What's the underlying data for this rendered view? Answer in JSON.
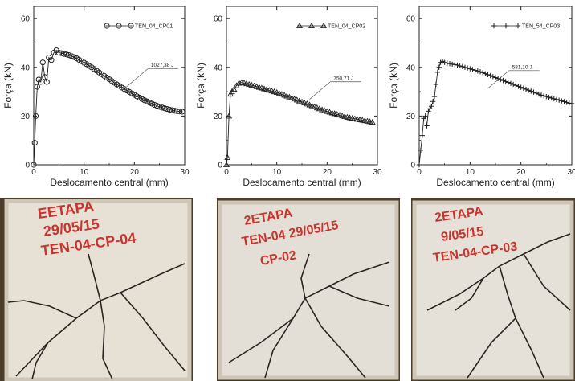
{
  "chart_data": [
    {
      "type": "scatter",
      "xlabel": "Deslocamento central (mm)",
      "ylabel": "Força (kN)",
      "xlim": [
        0,
        30
      ],
      "ylim": [
        0,
        65
      ],
      "xticks": [
        "0",
        "10",
        "20",
        "30"
      ],
      "yticks": [
        "0",
        "20",
        "40",
        "60"
      ],
      "marker": "circle",
      "legend_position": "top-right",
      "series": [
        {
          "name": "TEN_04_CP01",
          "x": [
            0,
            0.2,
            0.4,
            0.7,
            1.0,
            1.4,
            1.8,
            2.2,
            2.6,
            3.0,
            3.5,
            4.0,
            4.5,
            5.0,
            5.5,
            6.0,
            6.5,
            7.0,
            7.5,
            8.0,
            8.5,
            9.0,
            9.5,
            10.0,
            10.5,
            11.0,
            11.5,
            12.0,
            12.5,
            13.0,
            13.5,
            14.0,
            14.5,
            15.0,
            15.5,
            16.0,
            16.5,
            17.0,
            17.5,
            18.0,
            18.5,
            19.0,
            19.5,
            20.0,
            20.5,
            21.0,
            21.5,
            22.0,
            22.5,
            23.0,
            23.5,
            24.0,
            24.5,
            25.0,
            25.5,
            26.0,
            26.5,
            27.0,
            27.5,
            28.0,
            28.5,
            29.0,
            29.5
          ],
          "y": [
            0,
            9,
            20,
            32,
            35,
            34,
            42,
            36,
            34,
            44,
            43,
            46,
            47,
            46,
            45.8,
            45.5,
            45.3,
            45,
            44.6,
            44.2,
            43.7,
            43.1,
            42.5,
            41.9,
            41.3,
            40.6,
            40,
            39.3,
            38.6,
            37.9,
            37.2,
            36.5,
            35.8,
            35.1,
            34.4,
            33.7,
            33,
            32.4,
            31.7,
            31.1,
            30.5,
            29.9,
            29.3,
            28.7,
            28.1,
            27.6,
            27,
            26.5,
            26,
            25.5,
            25.1,
            24.6,
            24.2,
            23.8,
            23.5,
            23.2,
            22.9,
            22.6,
            22.4,
            22.2,
            22,
            21.9,
            21.8
          ]
        }
      ],
      "annotation": {
        "text": "1027,38 J",
        "x": 22,
        "y": 38.7
      }
    },
    {
      "type": "scatter",
      "xlabel": "Deslocamento central (mm)",
      "ylabel": "Força (kN)",
      "xlim": [
        0,
        30
      ],
      "ylim": [
        0,
        65
      ],
      "xticks": [
        "0",
        "10",
        "20",
        "30"
      ],
      "yticks": [
        "0",
        "20",
        "40",
        "60"
      ],
      "marker": "triangle",
      "legend_position": "top-right",
      "series": [
        {
          "name": "TEN_04_CP02",
          "x": [
            0,
            0.2,
            0.5,
            0.8,
            1.1,
            1.5,
            2.0,
            2.5,
            3.0,
            3.5,
            4.0,
            4.5,
            5.0,
            5.5,
            6.0,
            6.5,
            7.0,
            7.5,
            8.0,
            8.5,
            9.0,
            9.5,
            10.0,
            10.5,
            11.0,
            11.5,
            12.0,
            12.5,
            13.0,
            13.5,
            14.0,
            14.5,
            15.0,
            15.5,
            16.0,
            16.5,
            17.0,
            17.5,
            18.0,
            18.5,
            19.0,
            19.5,
            20.0,
            20.5,
            21.0,
            21.5,
            22.0,
            22.5,
            23.0,
            23.5,
            24.0,
            24.5,
            25.0,
            25.5,
            26.0,
            26.5,
            27.0,
            27.5,
            28.0,
            28.5,
            29.0
          ],
          "y": [
            0,
            3,
            20,
            29,
            30,
            31,
            32.5,
            33.5,
            33.8,
            33.6,
            33.3,
            33,
            32.7,
            32.4,
            32.1,
            31.8,
            31.5,
            31.2,
            30.9,
            30.6,
            30.3,
            30,
            29.7,
            29.3,
            29,
            28.6,
            28.2,
            27.8,
            27.4,
            27,
            26.6,
            26.2,
            25.8,
            25.4,
            25,
            24.6,
            24.2,
            23.8,
            23.4,
            23,
            22.6,
            22.2,
            21.9,
            21.6,
            21.3,
            21,
            20.7,
            20.4,
            20.1,
            19.8,
            19.5,
            19.3,
            19.1,
            18.9,
            18.7,
            18.5,
            18.3,
            18.1,
            17.9,
            17.7,
            17.5
          ]
        }
      ],
      "annotation": {
        "text": "750,71 J",
        "x": 20,
        "y": 33.4
      }
    },
    {
      "type": "scatter",
      "xlabel": "Deslocamento central (mm)",
      "ylabel": "Força (kN)",
      "xlim": [
        0,
        30
      ],
      "ylim": [
        0,
        65
      ],
      "xticks": [
        "0",
        "10",
        "20",
        "30"
      ],
      "yticks": [
        "0",
        "20",
        "40",
        "60"
      ],
      "marker": "plus",
      "legend_position": "top-right",
      "series": [
        {
          "name": "TEN_54_CP03",
          "x": [
            0,
            0.3,
            0.6,
            0.9,
            1.2,
            1.5,
            1.8,
            2.1,
            2.4,
            2.7,
            3.0,
            3.3,
            3.6,
            3.9,
            4.2,
            4.6,
            5.0,
            5.5,
            6.0,
            6.5,
            7.0,
            7.5,
            8.0,
            8.5,
            9.0,
            9.5,
            10.0,
            10.5,
            11.0,
            11.5,
            12.0,
            12.5,
            13.0,
            13.5,
            14.0,
            14.5,
            15.0,
            15.5,
            16.0,
            16.5,
            17.0,
            17.5,
            18.0,
            18.5,
            19.0,
            19.5,
            20.0,
            20.5,
            21.0,
            21.5,
            22.0,
            22.5,
            23.0,
            23.5,
            24.0,
            24.5,
            25.0,
            25.5,
            26.0,
            26.5,
            27.0,
            27.5,
            28.0,
            28.5,
            29.0,
            29.5,
            30.0
          ],
          "y": [
            0,
            6,
            12,
            19,
            20,
            16,
            22,
            23,
            24,
            26,
            28,
            33,
            38,
            40,
            42,
            42.5,
            42,
            41.7,
            41.5,
            41.3,
            41.1,
            40.9,
            40.6,
            40.3,
            40,
            39.7,
            39.4,
            39.1,
            38.8,
            38.5,
            38.2,
            37.8,
            37.4,
            37,
            36.6,
            36.2,
            35.8,
            35.4,
            35,
            34.6,
            34.2,
            33.8,
            33.4,
            33,
            32.6,
            32.2,
            31.8,
            31.4,
            31,
            30.6,
            30.2,
            29.8,
            29.4,
            29,
            28.6,
            28.3,
            28,
            27.7,
            27.4,
            27.1,
            26.8,
            26.5,
            26.2,
            25.9,
            25.6,
            25.3,
            25.1
          ]
        }
      ],
      "annotation": {
        "text": "581,10 J",
        "x": 17,
        "y": 38
      }
    }
  ],
  "photos": [
    {
      "lines": [
        "EETAPA",
        "29/05/15",
        "TEN-04-CP-04"
      ]
    },
    {
      "lines": [
        "2ETAPA",
        "TEN-04  29/05/15",
        "CP-02"
      ]
    },
    {
      "lines": [
        "2ETAPA",
        "9/05/15",
        "TEN-04-CP-03"
      ]
    }
  ],
  "colors": {
    "ink": "#222222",
    "slab": "#e7e1d6",
    "slab_shadow": "#cfc6b6",
    "crack": "#2a2520",
    "paint": "#c8342e",
    "background": "#3b3226"
  }
}
